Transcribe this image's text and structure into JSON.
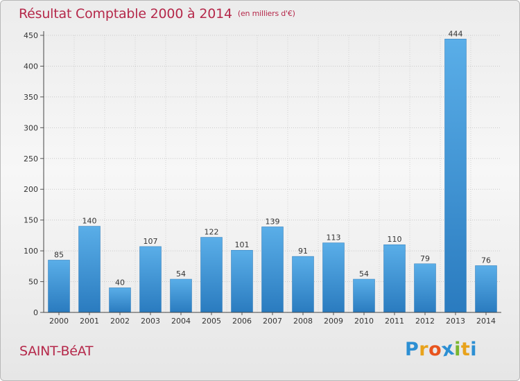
{
  "header": {
    "title": "Résultat Comptable 2000 à 2014",
    "unit": "(en milliers d'€)"
  },
  "footer": {
    "commune": "SAINT-BéAT",
    "logo_letters": [
      "P",
      "r",
      "o",
      "x",
      "i",
      "t",
      "i"
    ],
    "logo_colors": [
      "#2c8fd3",
      "#e8a21b",
      "#e8541e",
      "#2c8fd3",
      "#7ab62f",
      "#e8a21b",
      "#2c8fd3"
    ]
  },
  "chart_data": {
    "type": "bar",
    "title": "Résultat Comptable 2000 à 2014",
    "subtitle": "(en milliers d'€)",
    "xlabel": "",
    "ylabel": "",
    "categories": [
      "2000",
      "2001",
      "2002",
      "2003",
      "2004",
      "2005",
      "2006",
      "2007",
      "2008",
      "2009",
      "2010",
      "2011",
      "2012",
      "2013",
      "2014"
    ],
    "values": [
      85,
      140,
      40,
      107,
      54,
      122,
      101,
      139,
      91,
      113,
      54,
      110,
      79,
      444,
      76
    ],
    "value_labels": [
      "85",
      "140",
      "40",
      "107",
      "54",
      "122",
      "101",
      "139",
      "91",
      "113",
      "54",
      "110",
      "79",
      "444",
      "76"
    ],
    "ylim": [
      0,
      450
    ],
    "yticks": [
      0,
      50,
      100,
      150,
      200,
      250,
      300,
      350,
      400,
      450
    ],
    "ytick_labels": [
      "0",
      "50",
      "100",
      "150",
      "200",
      "250",
      "300",
      "350",
      "400",
      "450"
    ],
    "grid": true,
    "bar_color_top": "#5aaee8",
    "bar_color_bottom": "#2a7bbf"
  }
}
